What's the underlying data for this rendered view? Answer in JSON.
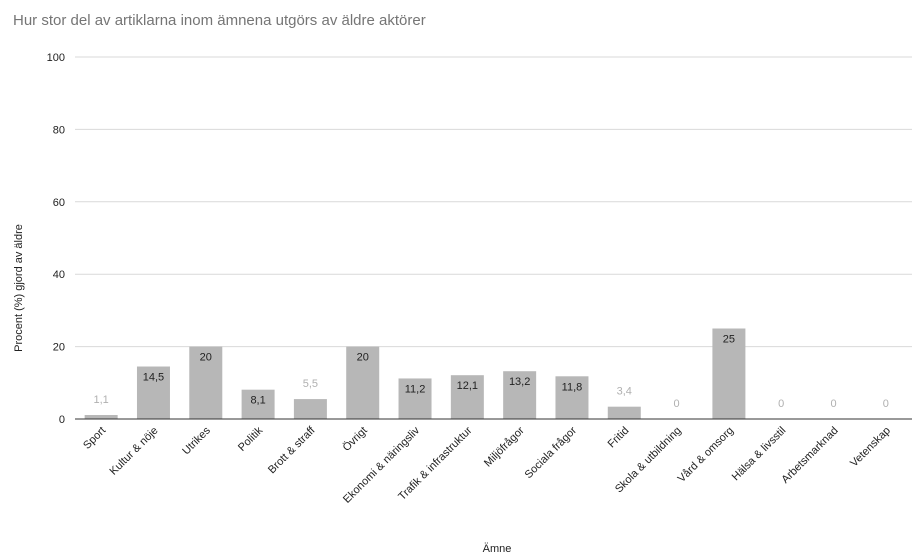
{
  "chart_data": {
    "type": "bar",
    "title": "Hur stor del av artiklarna inom ämnena utgörs av äldre aktörer",
    "xlabel": "Ämne",
    "ylabel": "Procent (%) gjord av äldre",
    "ylim": [
      0,
      100
    ],
    "yticks": [
      "0",
      "20",
      "40",
      "60",
      "80",
      "100"
    ],
    "grid": true,
    "categories": [
      "Sport",
      "Kultur & nöje",
      "Utrikes",
      "Politik",
      "Brott & straff",
      "Övrigt",
      "Ekonomi & näringsliv",
      "Trafik & infrastruktur",
      "Miljöfrågor",
      "Sociala frågor",
      "Fritid",
      "Skola & utbildning",
      "Vård & omsorg",
      "Hälsa & livsstil",
      "Arbetsmarknad",
      "Vetenskap"
    ],
    "values": [
      1.1,
      14.5,
      20,
      8.1,
      5.5,
      20,
      11.2,
      12.1,
      13.2,
      11.8,
      3.4,
      0,
      25,
      0,
      0,
      0
    ],
    "value_labels": [
      "1,1",
      "14,5",
      "20",
      "8,1",
      "5,5",
      "20",
      "11,2",
      "12,1",
      "13,2",
      "11,8",
      "3,4",
      "0",
      "25",
      "0",
      "0",
      "0"
    ],
    "colors": {
      "bar": "#b7b7b7",
      "grid": "#d9d9d9",
      "axis": "#333333",
      "label_inside": "#222222",
      "label_outside": "#b0b0b0",
      "title": "#757575"
    }
  }
}
